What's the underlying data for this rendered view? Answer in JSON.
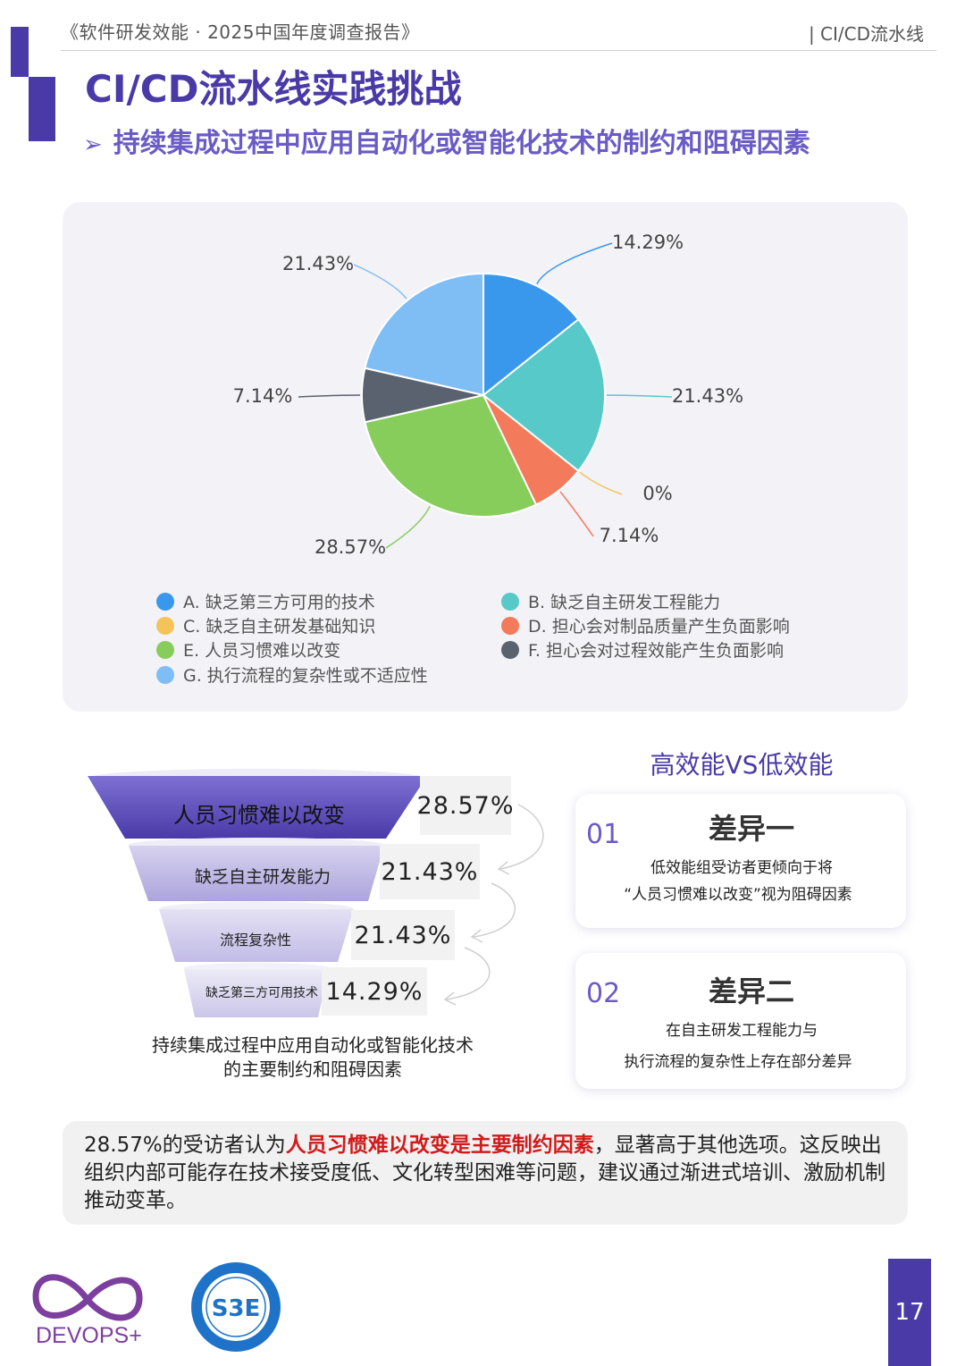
{
  "header": {
    "report_title": "《软件研发效能 · 2025中国年度调查报告》",
    "section": "| CI/CD流水线"
  },
  "page": {
    "title": "CI/CD流水线实践挑战",
    "subtitle": "持续集成过程中应用自动化或智能化技术的制约和阻碍因素",
    "subtitle_marker": "➢"
  },
  "chart_data": {
    "type": "pie",
    "slices": [
      {
        "key": "A",
        "label": "A. 缺乏第三方可用的技术",
        "value": 14.29,
        "display": "14.29%",
        "color": "#3a98ec"
      },
      {
        "key": "B",
        "label": "B. 缺乏自主研发工程能力",
        "value": 21.43,
        "display": "21.43%",
        "color": "#57c9c9"
      },
      {
        "key": "C",
        "label": "C. 缺乏自主研发基础知识",
        "value": 0,
        "display": "0%",
        "color": "#f4c35a"
      },
      {
        "key": "D",
        "label": "D. 担心会对制品质量产生负面影响",
        "value": 7.14,
        "display": "7.14%",
        "color": "#f37a5a"
      },
      {
        "key": "E",
        "label": "E. 人员习惯难以改变",
        "value": 28.57,
        "display": "28.57%",
        "color": "#87cd5c"
      },
      {
        "key": "F",
        "label": "F. 担心会对过程效能产生负面影响",
        "value": 7.14,
        "display": "7.14%",
        "color": "#5a6270"
      },
      {
        "key": "G",
        "label": "G. 执行流程的复杂性或不适应性",
        "value": 21.43,
        "display": "21.43%",
        "color": "#7fbdf5"
      }
    ],
    "legend_position": "bottom"
  },
  "funnel": {
    "items": [
      {
        "label": "人员习惯难以改变",
        "value": "28.57%"
      },
      {
        "label": "缺乏自主研发能力",
        "value": "21.43%"
      },
      {
        "label": "流程复杂性",
        "value": "21.43%"
      },
      {
        "label": "缺乏第三方可用技术",
        "value": "14.29%"
      }
    ],
    "caption_line1": "持续集成过程中应用自动化或智能化技术",
    "caption_line2": "的主要制约和阻碍因素"
  },
  "comparison": {
    "title": "高效能VS低效能",
    "cards": [
      {
        "num": "01",
        "title": "差异一",
        "line1": "低效能组受访者更倾向于将",
        "line2": "“人员习惯难以改变”视为阻碍因素"
      },
      {
        "num": "02",
        "title": "差异二",
        "line1": "在自主研发工程能力与",
        "line2": "执行流程的复杂性上存在部分差异"
      }
    ]
  },
  "summary": {
    "lead": "28.57%的受访者认为",
    "highlight": "人员习惯难以改变是主要制约因素",
    "rest": "，显著高于其他选项。这反映出组织内部可能存在技术接受度低、文化转型困难等问题，建议通过渐进式培训、激励机制推动变革。"
  },
  "footer": {
    "logo_text": "DEVOPS+",
    "seal_text": "S3E",
    "page_number": "17",
    "logo_color": "#7c3f9e",
    "seal_color": "#1e73c8"
  }
}
